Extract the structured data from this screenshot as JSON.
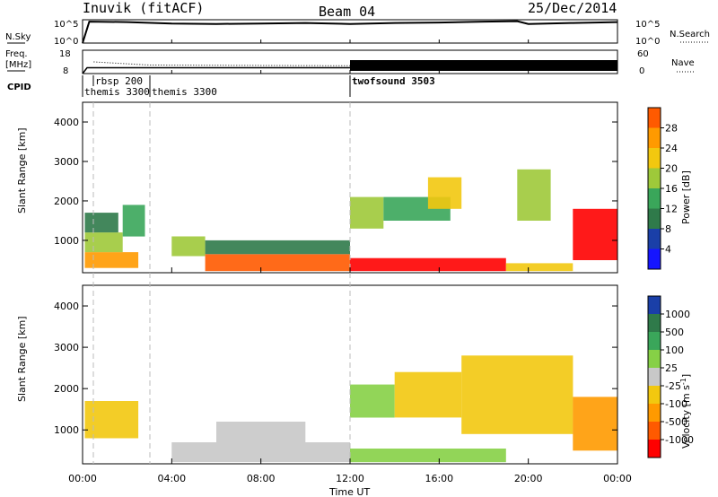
{
  "header": {
    "station": "Inuvik (fitACF)",
    "beam": "Beam 04",
    "date": "25/Dec/2014"
  },
  "top_panels": {
    "nsky_label": "N.Sky",
    "nsky_ticks": [
      "10^5",
      "10^0"
    ],
    "nsearch_label": "N.Search",
    "nsearch_ticks": [
      "10^5",
      "10^0"
    ],
    "freq_label_top": "Freq.",
    "freq_label_unit": "[MHz]",
    "freq_ticks": [
      "18",
      "8"
    ],
    "nave_label": "Nave",
    "nave_ticks": [
      "60",
      "0"
    ],
    "cpid_label": "CPID",
    "cpid_entries": [
      {
        "name": "rbsp 200",
        "start_hour": 0.5
      },
      {
        "name": "themis 3300",
        "start_hour": 0.0
      },
      {
        "name": "themis 3300",
        "start_hour": 3.0
      },
      {
        "name": "twofsound 3503",
        "start_hour": 12.0
      }
    ]
  },
  "axes": {
    "xlabel": "Time UT",
    "ylabel": "Slant Range [km]",
    "x_ticks": [
      "00:00",
      "04:00",
      "08:00",
      "12:00",
      "16:00",
      "20:00",
      "00:00"
    ],
    "y_ticks": [
      "1000",
      "2000",
      "3000",
      "4000"
    ]
  },
  "power_colorbar": {
    "label": "Power [dB]",
    "ticks": [
      "28",
      "24",
      "20",
      "16",
      "12",
      "8",
      "4"
    ],
    "colors": [
      "#ff0000",
      "#ff5a00",
      "#ff9a00",
      "#f2c80f",
      "#9ec93a",
      "#3aa65a",
      "#2f7a4a",
      "#1a3fa8",
      "#1515ff"
    ]
  },
  "velocity_colorbar": {
    "label": "Velocity [m s",
    "label_sup": "-1",
    "label_end": "]",
    "ticks": [
      "1000",
      "500",
      "100",
      "25",
      "-25",
      "-100",
      "-500",
      "-1000"
    ],
    "colors": [
      "#1a3fa8",
      "#2f7a4a",
      "#3aa65a",
      "#86d046",
      "#c8c8c8",
      "#f2c80f",
      "#ff9a00",
      "#ff5a00",
      "#ff0000"
    ]
  },
  "chart_data": [
    {
      "type": "line",
      "title": "N.Sky / N.Search",
      "x_range_hours": [
        0,
        24
      ],
      "series": [
        {
          "name": "N.Sky",
          "x": [
            0,
            0.3,
            2,
            4,
            6,
            8,
            10,
            12,
            14,
            16,
            18,
            19.5,
            20,
            22,
            24
          ],
          "y_log10": [
            0,
            4.6,
            4.5,
            4.2,
            4.1,
            4.2,
            4.3,
            4.1,
            4.3,
            4.4,
            4.6,
            4.7,
            4.1,
            4.3,
            4.5
          ]
        }
      ]
    },
    {
      "type": "line",
      "title": "Freq / Nave",
      "x_range_hours": [
        0,
        24
      ],
      "series": [
        {
          "name": "Freq.",
          "x": [
            0,
            0.2,
            24
          ],
          "y": [
            8,
            10.5,
            10.5
          ]
        },
        {
          "name": "Nave",
          "x": [
            0.5,
            3,
            12,
            24
          ],
          "y": [
            30,
            22,
            20,
            20
          ]
        }
      ]
    },
    {
      "type": "heatmap",
      "title": "Power [dB]",
      "x_range_hours": [
        0,
        24
      ],
      "ylim": [
        180,
        4500
      ],
      "clim": [
        0,
        30
      ],
      "cells": [
        [
          0.1,
          2.5,
          300,
          700,
          22
        ],
        [
          0.1,
          1.8,
          700,
          1200,
          14
        ],
        [
          0.1,
          1.6,
          1200,
          1700,
          8
        ],
        [
          1.8,
          2.8,
          1100,
          1900,
          12
        ],
        [
          4.0,
          5.5,
          600,
          1100,
          16
        ],
        [
          5.5,
          12.0,
          220,
          650,
          24
        ],
        [
          5.5,
          12.0,
          650,
          1000,
          10
        ],
        [
          12.0,
          19.0,
          220,
          550,
          28
        ],
        [
          12.0,
          13.5,
          1300,
          2100,
          16
        ],
        [
          13.5,
          16.5,
          1500,
          2100,
          12
        ],
        [
          15.5,
          17.0,
          1800,
          2600,
          18
        ],
        [
          19.0,
          22.0,
          220,
          420,
          20
        ],
        [
          19.5,
          21.0,
          1500,
          2800,
          14
        ],
        [
          22.0,
          24.0,
          500,
          1800,
          28
        ]
      ]
    },
    {
      "type": "heatmap",
      "title": "Velocity [m s-1]",
      "x_range_hours": [
        0,
        24
      ],
      "ylim": [
        180,
        4500
      ],
      "clim": [
        -1000,
        1000
      ],
      "cells": [
        [
          0.1,
          2.5,
          800,
          1700,
          -300
        ],
        [
          4.0,
          12.0,
          220,
          700,
          80
        ],
        [
          6.0,
          10.0,
          700,
          1200,
          0
        ],
        [
          12.0,
          19.0,
          220,
          550,
          150
        ],
        [
          12.0,
          14.0,
          1300,
          2100,
          200
        ],
        [
          14.0,
          17.0,
          1300,
          2400,
          -120
        ],
        [
          17.0,
          22.0,
          900,
          2800,
          -300
        ],
        [
          22.0,
          24.0,
          500,
          1800,
          -500
        ]
      ]
    }
  ]
}
